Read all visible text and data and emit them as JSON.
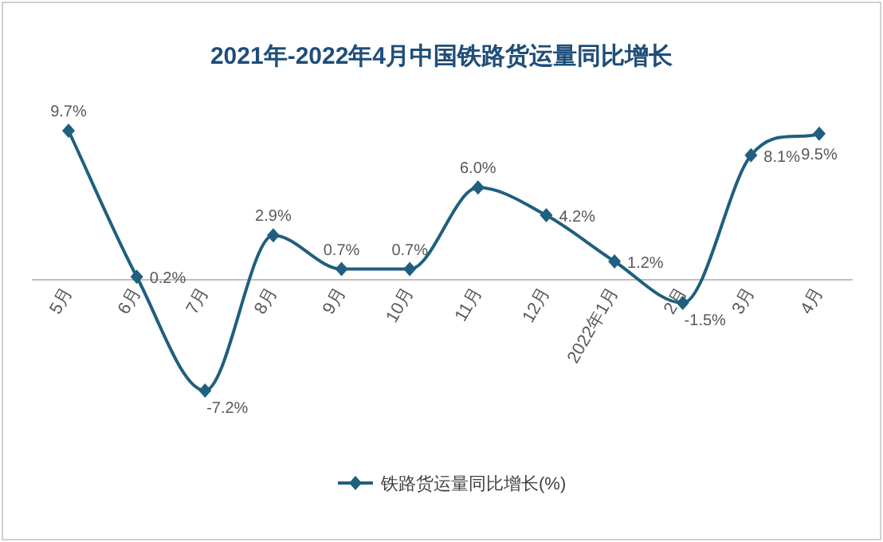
{
  "chart_data": {
    "type": "line",
    "title": "2021年-2022年4月中国铁路货运量同比增长",
    "categories": [
      "5月",
      "6月",
      "7月",
      "8月",
      "9月",
      "10月",
      "11月",
      "12月",
      "2022年1月",
      "2月",
      "3月",
      "4月"
    ],
    "series": [
      {
        "name": "铁路货运量同比增长(%)",
        "color": "#1f5f7f",
        "values": [
          9.7,
          0.2,
          -7.2,
          2.9,
          0.7,
          0.7,
          6.0,
          4.2,
          1.2,
          -1.5,
          8.1,
          9.5
        ],
        "value_labels": [
          "9.7%",
          "0.2%",
          "-7.2%",
          "2.9%",
          "0.7%",
          "0.7%",
          "6.0%",
          "4.2%",
          "1.2%",
          "-1.5%",
          "8.1%",
          "9.5%"
        ]
      }
    ],
    "marker": "diamond",
    "legend": "bottom"
  }
}
